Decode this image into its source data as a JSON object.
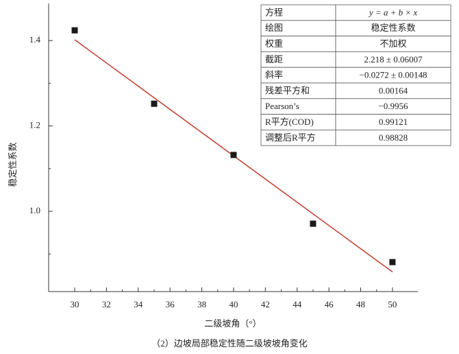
{
  "chart_data": {
    "type": "scatter",
    "caption": "（2）边坡局部稳定性随二级坡坡角变化",
    "x_label": "二级坡角（°）",
    "y_label": "稳定性系数",
    "x": [
      30,
      35,
      40,
      45,
      50
    ],
    "values": [
      1.424,
      1.252,
      1.132,
      0.971,
      0.881
    ],
    "color": "#1a1a1a",
    "fit_line": {
      "x": [
        30,
        50
      ],
      "values": [
        1.402,
        0.858
      ],
      "color": "#c0392b"
    },
    "xlim": [
      28.36,
      51.6
    ],
    "ylim": [
      0.812,
      1.487
    ],
    "xticks": [
      30,
      32,
      34,
      36,
      38,
      40,
      42,
      44,
      46,
      48,
      50
    ],
    "xminorticks": [
      31,
      33,
      35,
      37,
      39,
      41,
      43,
      45,
      47,
      49
    ],
    "yticks": [
      {
        "value": 1,
        "label": "1.0"
      },
      1.2,
      1.4
    ],
    "yminorticks": [
      0.9,
      1.1,
      1.3
    ],
    "table": {
      "rows": [
        [
          "方程",
          "y = a + b × x"
        ],
        [
          "绘图",
          "稳定性系数"
        ],
        [
          "权重",
          "不加权"
        ],
        [
          "截距",
          "2.218 ± 0.06007"
        ],
        [
          "斜率",
          "−0.0272 ± 0.00148"
        ],
        [
          "残差平方和",
          "0.00164"
        ],
        [
          "Pearson’s",
          "−0.9956"
        ],
        [
          "R平方(COD)",
          "0.99121"
        ],
        [
          "调整后R平方",
          "0.98828"
        ]
      ]
    }
  }
}
